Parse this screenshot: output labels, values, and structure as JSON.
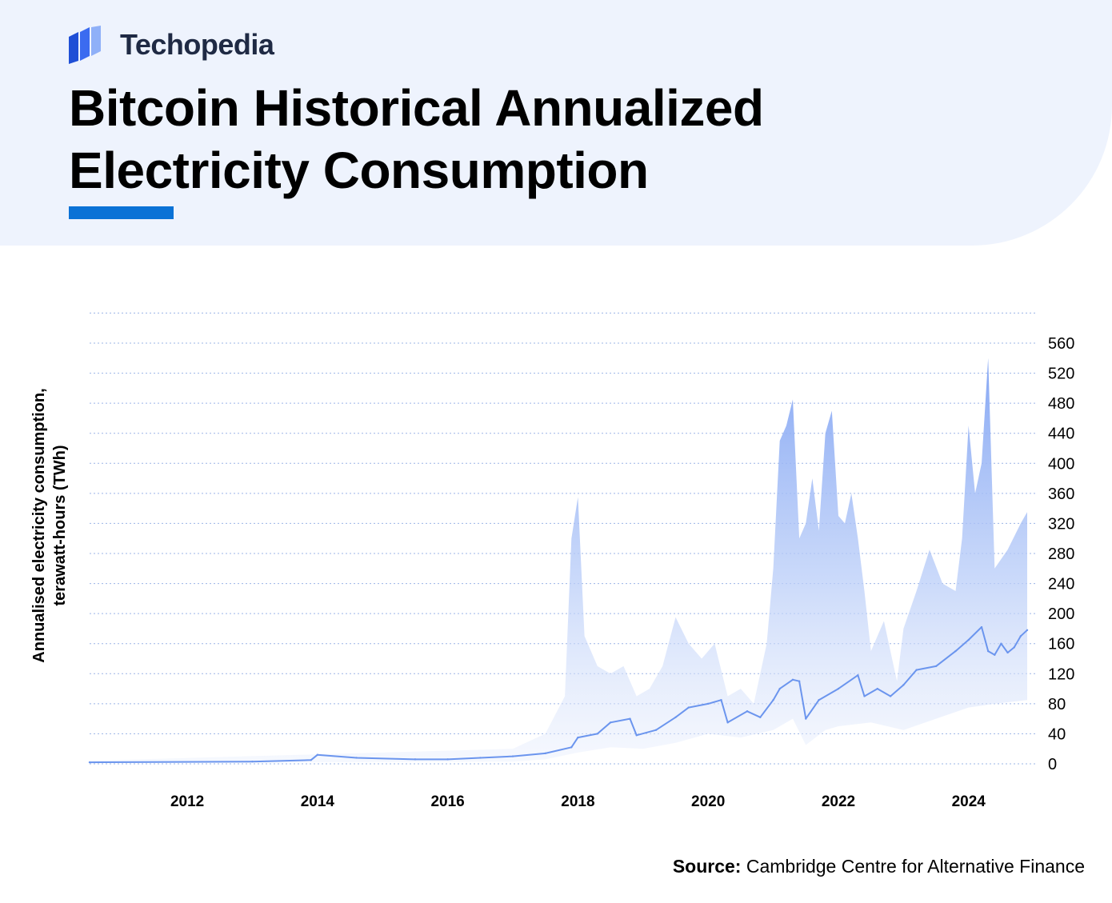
{
  "brand": {
    "name": "Techopedia",
    "logo_icon": "stacked-panels-logo-icon",
    "accent": "#0a72d6"
  },
  "title": {
    "line1": "Bitcoin Historical Annualized",
    "line2": "Electricity Consumption"
  },
  "source": {
    "label": "Source:",
    "text": "Cambridge Centre for Alternative Finance"
  },
  "chart_data": {
    "type": "area",
    "ylabel_line1": "Annualised electricity consumption,",
    "ylabel_line2": "terawatt-hours (TWh)",
    "y_axis_position": "right",
    "ylim": [
      0,
      560
    ],
    "y_ticks": [
      0,
      40,
      80,
      120,
      160,
      200,
      240,
      280,
      320,
      360,
      400,
      440,
      480,
      520,
      560
    ],
    "xlim": [
      2010.5,
      2024.9
    ],
    "x_ticks": [
      2012,
      2014,
      2016,
      2018,
      2020,
      2022,
      2024
    ],
    "x_tick_labels": [
      "2012",
      "2014",
      "2016",
      "2018",
      "2020",
      "2022",
      "2024"
    ],
    "grid": "horizontal-dotted",
    "colors": {
      "estimate_line": "#6b95ee",
      "range_band": "#8eaef5"
    },
    "series": [
      {
        "role": "estimate",
        "x": [
          2010.5,
          2013.0,
          2013.9,
          2014.0,
          2014.6,
          2015.5,
          2016.0,
          2016.5,
          2017.0,
          2017.5,
          2017.9,
          2018.0,
          2018.3,
          2018.5,
          2018.8,
          2018.9,
          2019.2,
          2019.5,
          2019.7,
          2020.0,
          2020.2,
          2020.3,
          2020.6,
          2020.8,
          2021.0,
          2021.1,
          2021.3,
          2021.4,
          2021.5,
          2021.7,
          2022.0,
          2022.3,
          2022.4,
          2022.6,
          2022.8,
          2023.0,
          2023.2,
          2023.5,
          2023.8,
          2024.0,
          2024.2,
          2024.3,
          2024.4,
          2024.5,
          2024.6,
          2024.7,
          2024.8,
          2024.9
        ],
        "values": [
          2,
          3,
          5,
          12,
          8,
          6,
          6,
          8,
          10,
          14,
          22,
          35,
          40,
          55,
          60,
          38,
          45,
          62,
          75,
          80,
          85,
          55,
          70,
          62,
          85,
          100,
          112,
          110,
          60,
          85,
          100,
          118,
          90,
          100,
          90,
          105,
          125,
          130,
          150,
          165,
          182,
          150,
          145,
          160,
          148,
          155,
          170,
          178
        ]
      },
      {
        "role": "upper-bound",
        "x": [
          2010.5,
          2017.0,
          2017.5,
          2017.8,
          2017.9,
          2018.0,
          2018.1,
          2018.3,
          2018.5,
          2018.7,
          2018.9,
          2019.1,
          2019.3,
          2019.5,
          2019.7,
          2019.9,
          2020.1,
          2020.3,
          2020.5,
          2020.7,
          2020.9,
          2021.0,
          2021.1,
          2021.2,
          2021.3,
          2021.4,
          2021.5,
          2021.6,
          2021.7,
          2021.8,
          2021.9,
          2022.0,
          2022.1,
          2022.2,
          2022.3,
          2022.4,
          2022.5,
          2022.7,
          2022.9,
          2023.0,
          2023.2,
          2023.4,
          2023.6,
          2023.8,
          2023.9,
          2024.0,
          2024.1,
          2024.2,
          2024.3,
          2024.4,
          2024.6,
          2024.8,
          2024.9
        ],
        "values": [
          4,
          20,
          40,
          90,
          300,
          355,
          170,
          130,
          120,
          130,
          90,
          100,
          130,
          195,
          160,
          140,
          160,
          90,
          100,
          80,
          160,
          260,
          430,
          450,
          485,
          300,
          320,
          380,
          310,
          440,
          470,
          330,
          320,
          360,
          300,
          230,
          150,
          190,
          110,
          180,
          230,
          285,
          240,
          230,
          300,
          450,
          360,
          400,
          540,
          260,
          285,
          320,
          335
        ]
      },
      {
        "role": "lower-bound",
        "x": [
          2010.5,
          2017.0,
          2017.5,
          2018.0,
          2018.5,
          2019.0,
          2019.5,
          2020.0,
          2020.5,
          2021.0,
          2021.3,
          2021.5,
          2021.8,
          2022.0,
          2022.5,
          2023.0,
          2023.5,
          2024.0,
          2024.4,
          2024.9
        ],
        "values": [
          1,
          3,
          6,
          15,
          22,
          20,
          28,
          40,
          35,
          45,
          60,
          25,
          45,
          50,
          55,
          45,
          60,
          75,
          80,
          85
        ]
      }
    ]
  }
}
